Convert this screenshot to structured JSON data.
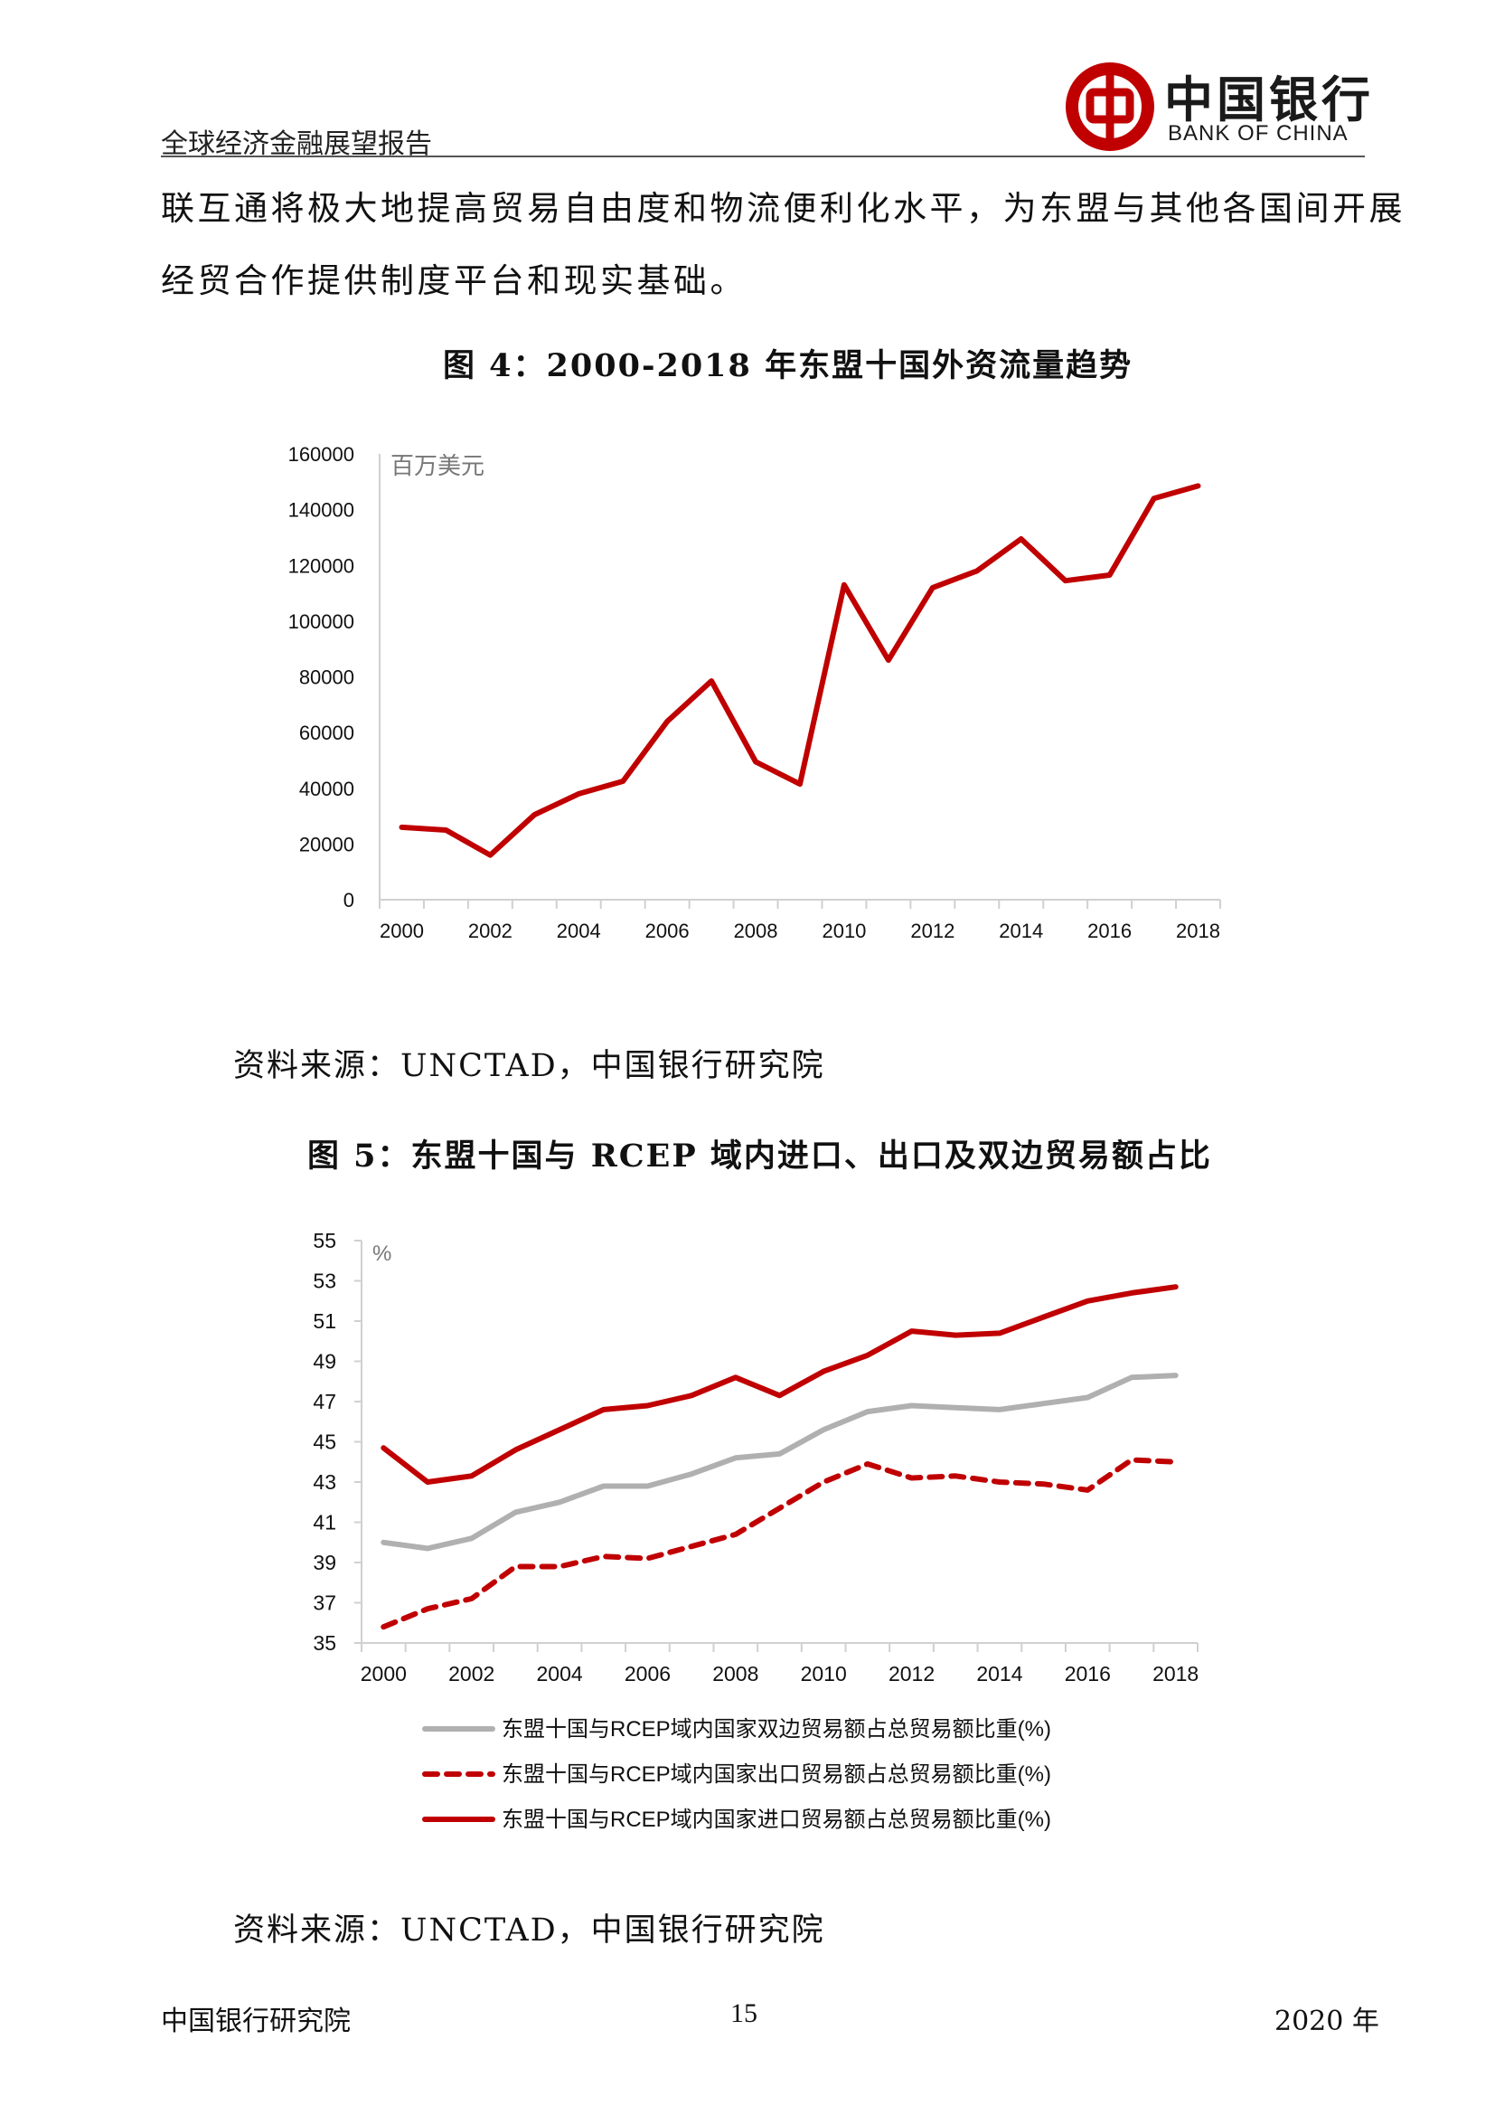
{
  "header": {
    "report_title": "全球经济金融展望报告",
    "bank_name_cn": "中国银行",
    "bank_name_en": "BANK OF CHINA"
  },
  "body": {
    "para_line1": "联互通将极大地提高贸易自由度和物流便利化水平，为东盟与其他各国间开展",
    "para_line2": "经贸合作提供制度平台和现实基础。"
  },
  "figure4": {
    "title": "图 4：2000-2018 年东盟十国外资流量趋势",
    "source": "资料来源：UNCTAD，中国银行研究院"
  },
  "figure5": {
    "title": "图 5：东盟十国与 RCEP 域内进口、出口及双边贸易额占比",
    "source": "资料来源：UNCTAD，中国银行研究院"
  },
  "footer": {
    "org": "中国银行研究院",
    "page": "15",
    "year": "2020 年"
  },
  "colors": {
    "red": "#c00000",
    "gray": "#b0b0b0",
    "axis": "#d0d0d0"
  },
  "chart_data": [
    {
      "type": "line",
      "unit_label": "百万美元",
      "x": [
        2000,
        2001,
        2002,
        2003,
        2004,
        2005,
        2006,
        2007,
        2008,
        2009,
        2010,
        2011,
        2012,
        2013,
        2014,
        2015,
        2016,
        2017,
        2018
      ],
      "x_tick_labels": [
        "2000",
        "2002",
        "2004",
        "2006",
        "2008",
        "2010",
        "2012",
        "2014",
        "2016",
        "2018"
      ],
      "ylim": [
        0,
        160000
      ],
      "y_tick_labels": [
        "0",
        "20000",
        "40000",
        "60000",
        "80000",
        "100000",
        "120000",
        "140000",
        "160000"
      ],
      "series": [
        {
          "name": "东盟十国外资流量",
          "color": "#c00000",
          "values": [
            26000,
            25000,
            16000,
            30500,
            38000,
            42500,
            64000,
            78500,
            49500,
            41500,
            113000,
            86000,
            112000,
            118000,
            129500,
            114500,
            116500,
            144000,
            148500
          ]
        }
      ]
    },
    {
      "type": "line",
      "unit_label": "%",
      "x": [
        2000,
        2001,
        2002,
        2003,
        2004,
        2005,
        2006,
        2007,
        2008,
        2009,
        2010,
        2011,
        2012,
        2013,
        2014,
        2015,
        2016,
        2017,
        2018
      ],
      "x_tick_labels": [
        "2000",
        "2002",
        "2004",
        "2006",
        "2008",
        "2010",
        "2012",
        "2014",
        "2016",
        "2018"
      ],
      "ylim": [
        35,
        55
      ],
      "y_tick_labels": [
        "35",
        "37",
        "39",
        "41",
        "43",
        "45",
        "47",
        "49",
        "51",
        "53",
        "55"
      ],
      "legend_position": "bottom",
      "series": [
        {
          "name": "东盟十国与RCEP域内国家双边贸易额占总贸易额比重(%)",
          "color": "#b0b0b0",
          "style": "solid",
          "values": [
            40.0,
            39.7,
            40.2,
            41.5,
            42.0,
            42.8,
            42.8,
            43.4,
            44.2,
            44.4,
            45.6,
            46.5,
            46.8,
            46.7,
            46.6,
            46.9,
            47.2,
            48.2,
            48.3
          ]
        },
        {
          "name": "东盟十国与RCEP域内国家出口贸易额占总贸易额比重(%)",
          "color": "#c00000",
          "style": "dashed",
          "values": [
            35.8,
            36.7,
            37.2,
            38.8,
            38.8,
            39.3,
            39.2,
            39.8,
            40.4,
            41.7,
            43.0,
            43.9,
            43.2,
            43.3,
            43.0,
            42.9,
            42.6,
            44.1,
            44.0
          ]
        },
        {
          "name": "东盟十国与RCEP域内国家进口贸易额占总贸易额比重(%)",
          "color": "#c00000",
          "style": "solid",
          "values": [
            44.7,
            43.0,
            43.3,
            44.6,
            45.6,
            46.6,
            46.8,
            47.3,
            48.2,
            47.3,
            48.5,
            49.3,
            50.5,
            50.3,
            50.4,
            51.2,
            52.0,
            52.4,
            52.7
          ]
        }
      ]
    }
  ]
}
